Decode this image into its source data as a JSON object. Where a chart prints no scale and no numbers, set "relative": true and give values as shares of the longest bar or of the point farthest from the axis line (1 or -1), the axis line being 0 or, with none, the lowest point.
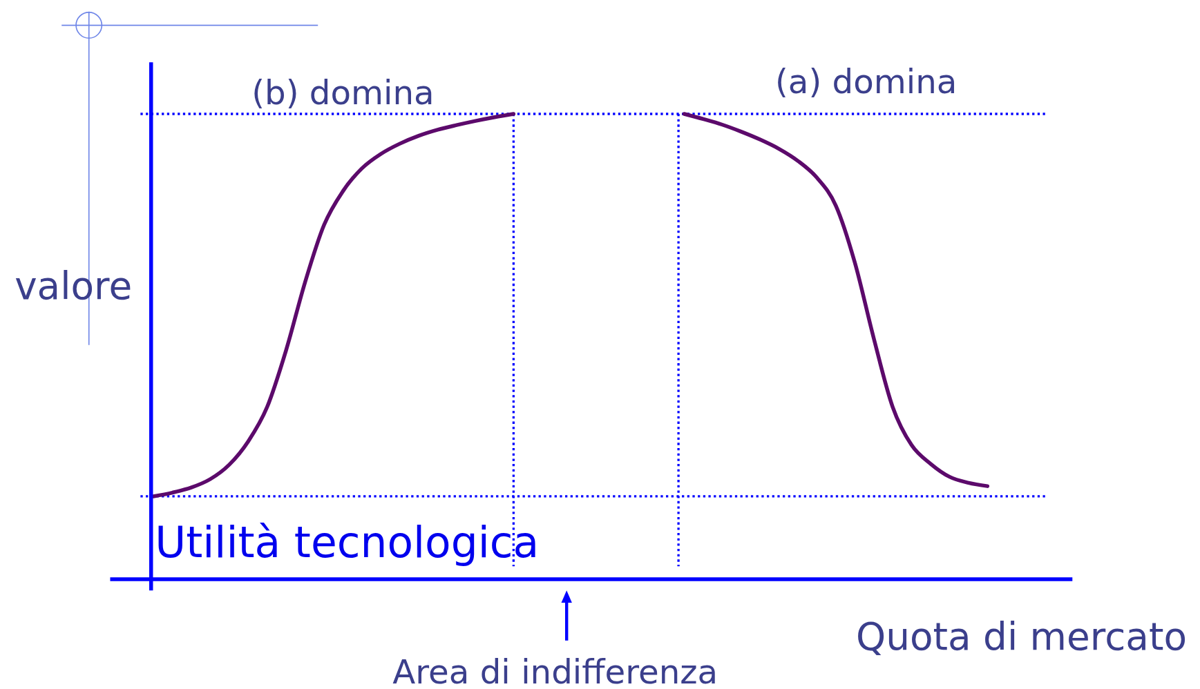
{
  "chart_data": {
    "type": "line",
    "relative": true,
    "xlabel": "Quota di mercato",
    "ylabel": "valore",
    "categories": [
      null,
      null,
      null,
      null,
      null,
      null,
      null,
      null,
      null,
      null,
      null,
      null,
      null,
      null,
      null,
      null,
      null,
      null,
      null,
      null,
      null,
      null,
      null,
      null,
      null,
      null,
      null,
      null,
      null,
      null,
      null,
      null,
      null,
      null,
      null,
      null,
      null,
      null,
      null,
      null,
      null,
      null,
      null,
      null,
      null
    ],
    "series": [
      {
        "color": "#5c0a6b",
        "values": [
          0.178,
          0.186,
          0.197,
          0.215,
          0.246,
          0.296,
          0.37,
          0.492,
          0.638,
          0.761,
          0.834,
          0.883,
          0.914,
          0.936,
          0.953,
          0.966,
          0.976,
          0.985,
          0.993,
          1,
          null,
          null,
          null,
          null,
          null,
          null,
          null,
          null,
          null,
          null,
          null,
          null,
          null,
          null,
          null,
          null,
          null,
          null,
          null,
          null,
          null,
          null,
          null,
          null,
          null
        ]
      },
      {
        "color": "#5c0a6b",
        "values": [
          null,
          null,
          null,
          null,
          null,
          null,
          null,
          null,
          null,
          null,
          null,
          null,
          null,
          null,
          null,
          null,
          null,
          null,
          null,
          null,
          null,
          null,
          null,
          null,
          null,
          null,
          null,
          null,
          1,
          0.989,
          0.977,
          0.962,
          0.945,
          0.925,
          0.899,
          0.863,
          0.803,
          0.681,
          0.518,
          0.37,
          0.288,
          0.248,
          0.22,
          0.207,
          0.2
        ]
      }
    ],
    "annotations": [
      "(b) domina",
      "(a) domina",
      "Utilità tecnologica",
      "Area di indifferenza"
    ],
    "ref_lines": [
      {
        "axis": "y",
        "value": 1,
        "color": "#0000ff",
        "line_style": "dotted"
      },
      {
        "axis": "y",
        "value": 0.178,
        "color": "#0000ff",
        "line_style": "dotted"
      }
    ],
    "line_style": "solid"
  }
}
